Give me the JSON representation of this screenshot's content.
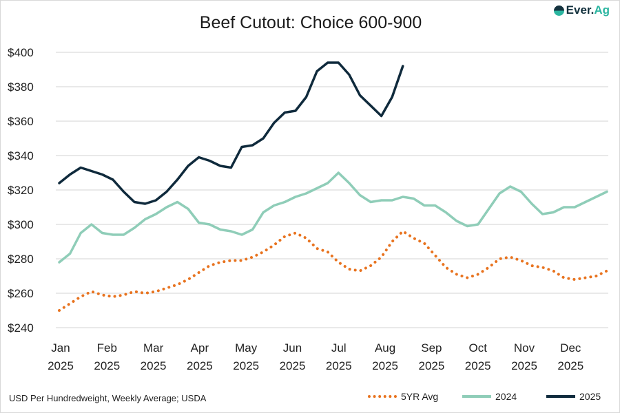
{
  "chart_data": {
    "type": "line",
    "title": "Beef Cutout: Choice 600-900",
    "logo": "Ever.Ag",
    "xlabel": "",
    "ylabel": "",
    "ylim": [
      240,
      400
    ],
    "y_ticks": [
      "$240",
      "$260",
      "$280",
      "$300",
      "$320",
      "$340",
      "$360",
      "$380",
      "$400"
    ],
    "x_ticks": [
      [
        "Jan",
        "2025"
      ],
      [
        "Feb",
        "2025"
      ],
      [
        "Mar",
        "2025"
      ],
      [
        "Apr",
        "2025"
      ],
      [
        "May",
        "2025"
      ],
      [
        "Jun",
        "2025"
      ],
      [
        "Jul",
        "2025"
      ],
      [
        "Aug",
        "2025"
      ],
      [
        "Sep",
        "2025"
      ],
      [
        "Oct",
        "2025"
      ],
      [
        "Nov",
        "2025"
      ],
      [
        "Dec",
        "2025"
      ]
    ],
    "x_unit": "week of year",
    "grid": true,
    "legend_position": "bottom-right",
    "footnote": "USD Per Hundredweight, Weekly Average; USDA",
    "series": [
      {
        "name": "5YR Avg",
        "color": "#e8731f",
        "style": "dotted",
        "values": [
          250,
          254,
          258,
          261,
          259,
          258,
          259,
          261,
          260,
          261,
          263,
          265,
          268,
          272,
          276,
          278,
          279,
          279,
          281,
          284,
          288,
          293,
          295,
          292,
          286,
          284,
          278,
          274,
          273,
          276,
          281,
          290,
          296,
          292,
          289,
          282,
          275,
          271,
          269,
          271,
          275,
          280,
          281,
          279,
          276,
          275,
          273,
          269,
          268,
          269,
          270,
          273
        ]
      },
      {
        "name": "2024",
        "color": "#8fcdb8",
        "style": "solid",
        "values": [
          278,
          283,
          295,
          300,
          295,
          294,
          294,
          298,
          303,
          306,
          310,
          313,
          309,
          301,
          300,
          297,
          296,
          294,
          297,
          307,
          311,
          313,
          316,
          318,
          321,
          324,
          330,
          324,
          317,
          313,
          314,
          314,
          316,
          315,
          311,
          311,
          307,
          302,
          299,
          300,
          309,
          318,
          322,
          319,
          312,
          306,
          307,
          310,
          310,
          313,
          316,
          319
        ]
      },
      {
        "name": "2025",
        "color": "#0f2a3c",
        "style": "solid",
        "values": [
          324,
          329,
          333,
          331,
          329,
          326,
          319,
          313,
          312,
          314,
          319,
          326,
          334,
          339,
          337,
          334,
          333,
          345,
          346,
          350,
          359,
          365,
          366,
          374,
          389,
          394,
          394,
          387,
          375,
          369,
          363,
          374,
          392
        ]
      }
    ]
  }
}
